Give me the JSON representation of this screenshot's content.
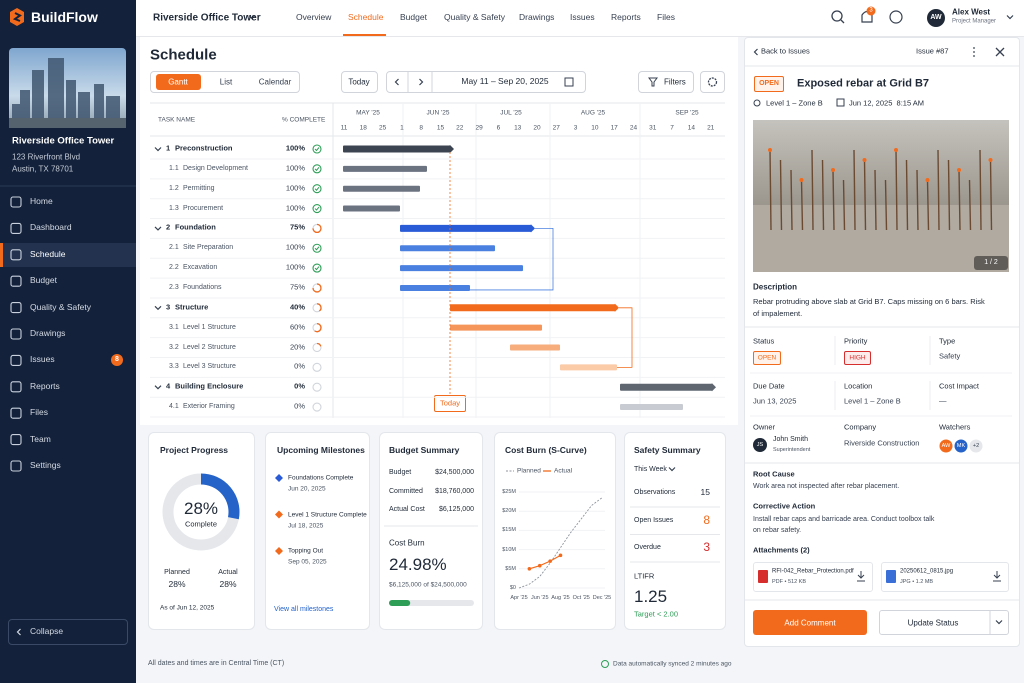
{
  "app": {
    "name": "BuildFlow"
  },
  "project": {
    "name": "Riverside Office Tower",
    "address1": "123 Riverfront Blvd",
    "address2": "Austin, TX 78701"
  },
  "sidebar": {
    "nav": [
      "Home",
      "Dashboard",
      "Schedule",
      "Budget",
      "Quality & Safety",
      "Drawings",
      "Issues",
      "Reports",
      "Files",
      "Team",
      "Settings"
    ],
    "issues_badge": 8,
    "collapse": "Collapse"
  },
  "topbar": {
    "project": "Riverside Office Tower",
    "tabs": [
      "Overview",
      "Schedule",
      "Budget",
      "Quality & Safety",
      "Drawings",
      "Issues",
      "Reports",
      "Files"
    ],
    "notifications": 3,
    "user": {
      "initials": "AW",
      "name": "Alex West",
      "role": "Project Manager"
    }
  },
  "schedule": {
    "title": "Schedule",
    "views": [
      "Gantt",
      "List",
      "Calendar"
    ],
    "today": "Today",
    "range": "May 11 – Sep 20, 2025",
    "filters": "Filters",
    "columns": [
      "TASK NAME",
      "% COMPLETE"
    ],
    "months": [
      "MAY '25",
      "JUN '25",
      "JUL '25",
      "AUG '25",
      "SEP '25"
    ],
    "days": [
      "11",
      "18",
      "25",
      "1",
      "8",
      "15",
      "22",
      "29",
      "6",
      "13",
      "20",
      "27",
      "3",
      "10",
      "17",
      "24",
      "31",
      "7",
      "14",
      "21"
    ],
    "tasks": [
      {
        "id": "1",
        "name": "Preconstruction",
        "pct": {
          "value": 100,
          "label": "100%"
        }
      },
      {
        "id": "1.1",
        "name": "Design Development",
        "pct": {
          "value": 100,
          "label": "100%"
        }
      },
      {
        "id": "1.2",
        "name": "Permitting",
        "pct": {
          "value": 100,
          "label": "100%"
        }
      },
      {
        "id": "1.3",
        "name": "Procurement",
        "pct": {
          "value": 100,
          "label": "100%"
        }
      },
      {
        "id": "2",
        "name": "Foundation",
        "pct": {
          "value": 75,
          "label": "75%"
        }
      },
      {
        "id": "2.1",
        "name": "Site Preparation",
        "pct": {
          "value": 100,
          "label": "100%"
        }
      },
      {
        "id": "2.2",
        "name": "Excavation",
        "pct": {
          "value": 100,
          "label": "100%"
        }
      },
      {
        "id": "2.3",
        "name": "Foundations",
        "pct": {
          "value": 75,
          "label": "75%"
        }
      },
      {
        "id": "3",
        "name": "Structure",
        "pct": {
          "value": 40,
          "label": "40%"
        }
      },
      {
        "id": "3.1",
        "name": "Level 1 Structure",
        "pct": {
          "value": 60,
          "label": "60%"
        }
      },
      {
        "id": "3.2",
        "name": "Level 2 Structure",
        "pct": {
          "value": 20,
          "label": "20%"
        }
      },
      {
        "id": "3.3",
        "name": "Level 3 Structure",
        "pct": {
          "value": 0,
          "label": "0%"
        }
      },
      {
        "id": "4",
        "name": "Building Enclosure",
        "pct": {
          "value": 0,
          "label": "0%"
        }
      },
      {
        "id": "4.1",
        "name": "Exterior Framing",
        "pct": {
          "value": 0,
          "label": "0%"
        }
      }
    ],
    "today_marker": "Today"
  },
  "dashboard": {
    "progress": {
      "title": "Project Progress",
      "value": {
        "value": 28,
        "label": "28%"
      },
      "caption": "Complete",
      "planned_label": "Planned",
      "planned": "28%",
      "actual_label": "Actual",
      "actual": "28%",
      "as_of": "As of Jun 12, 2025"
    },
    "milestones": {
      "title": "Upcoming Milestones",
      "items": [
        {
          "name": "Foundations Complete",
          "date": "Jun 20, 2025"
        },
        {
          "name": "Level 1 Structure Complete",
          "date": "Jul 18, 2025"
        },
        {
          "name": "Topping Out",
          "date": "Sep 05, 2025"
        }
      ],
      "link": "View all milestones"
    },
    "budget": {
      "title": "Budget Summary",
      "rows": [
        [
          "Budget",
          "$24,500,000"
        ],
        [
          "Committed",
          "$18,760,000"
        ],
        [
          "Actual Cost",
          "$6,125,000"
        ]
      ],
      "burn_title": "Cost Burn",
      "burn": {
        "value": 24.98,
        "label": "24.98%"
      },
      "burn_caption": "$6,125,000 of $24,500,000"
    },
    "cost_burn": {
      "type": "line",
      "title": "Cost Burn (S-Curve)",
      "categories": [
        "Apr '25",
        null,
        "Jun '25",
        null,
        "Aug '25",
        null,
        "Oct '25",
        null,
        "Dec '25"
      ],
      "series": [
        {
          "name": "Planned",
          "color": "#8d939c",
          "values": [
            0,
            1,
            3,
            6.5,
            10.5,
            14.5,
            18,
            21.5,
            23.5
          ]
        },
        {
          "name": "Actual",
          "color": "#f26b1d",
          "values": [
            null,
            5,
            5.8,
            7,
            8.5,
            null,
            null,
            null,
            null
          ]
        }
      ],
      "ylim": [
        0,
        25
      ],
      "yticks": [
        {
          "value": 0,
          "label": "$0"
        },
        {
          "value": 5,
          "label": "$5M"
        },
        {
          "value": 10,
          "label": "$10M"
        },
        {
          "value": 15,
          "label": "$15M"
        },
        {
          "value": 20,
          "label": "$20M"
        },
        {
          "value": 25,
          "label": "$25M"
        }
      ]
    },
    "safety": {
      "title": "Safety Summary",
      "period": "This Week",
      "rows": [
        [
          "Observations",
          15
        ],
        [
          "Open Issues",
          8
        ],
        [
          "Overdue",
          3
        ]
      ],
      "ltifr_label": "LTIFR",
      "ltifr": "1.25",
      "target": "Target < 2.00"
    }
  },
  "footer": {
    "timezone": "All dates and times are in Central Time (CT)",
    "sync": "Data automatically synced 2 minutes ago"
  },
  "issue": {
    "back": "Back to Issues",
    "number": "Issue #87",
    "status_badge": "OPEN",
    "title": "Exposed rebar at Grid B7",
    "location": "Level 1 – Zone B",
    "datetime": "Jun 12, 2025  8:15 AM",
    "photo_counter": "1 / 2",
    "description_label": "Description",
    "description": "Rebar protruding above slab at Grid B7. Caps missing on 6 bars. Risk of impalement.",
    "fields": [
      {
        "label": "Status",
        "value": "OPEN"
      },
      {
        "label": "Priority",
        "value": "HIGH"
      },
      {
        "label": "Type",
        "value": "Safety"
      },
      {
        "label": "Due Date",
        "value": "Jun 13, 2025"
      },
      {
        "label": "Location",
        "value": "Level 1 – Zone B"
      },
      {
        "label": "Cost Impact",
        "value": "—"
      }
    ],
    "owner_label": "Owner",
    "owner": {
      "initials": "JS",
      "name": "John Smith",
      "role": "Superintendent"
    },
    "company_label": "Company",
    "company": "Riverside Construction",
    "watchers_label": "Watchers",
    "watchers": [
      "AW",
      "MK",
      "+2"
    ],
    "root_cause_label": "Root Cause",
    "root_cause": "Work area not inspected after rebar placement.",
    "action_label": "Corrective Action",
    "action": "Install rebar caps and barricade area. Conduct toolbox talk on rebar safety.",
    "attachments_label": "Attachments (2)",
    "attachments": [
      {
        "name": "RFI-042_Rebar_Protection.pdf",
        "meta": "PDF • 512 KB"
      },
      {
        "name": "20250612_0815.jpg",
        "meta": "JPG • 1.2 MB"
      }
    ],
    "add_comment": "Add Comment",
    "update_status": "Update Status"
  }
}
